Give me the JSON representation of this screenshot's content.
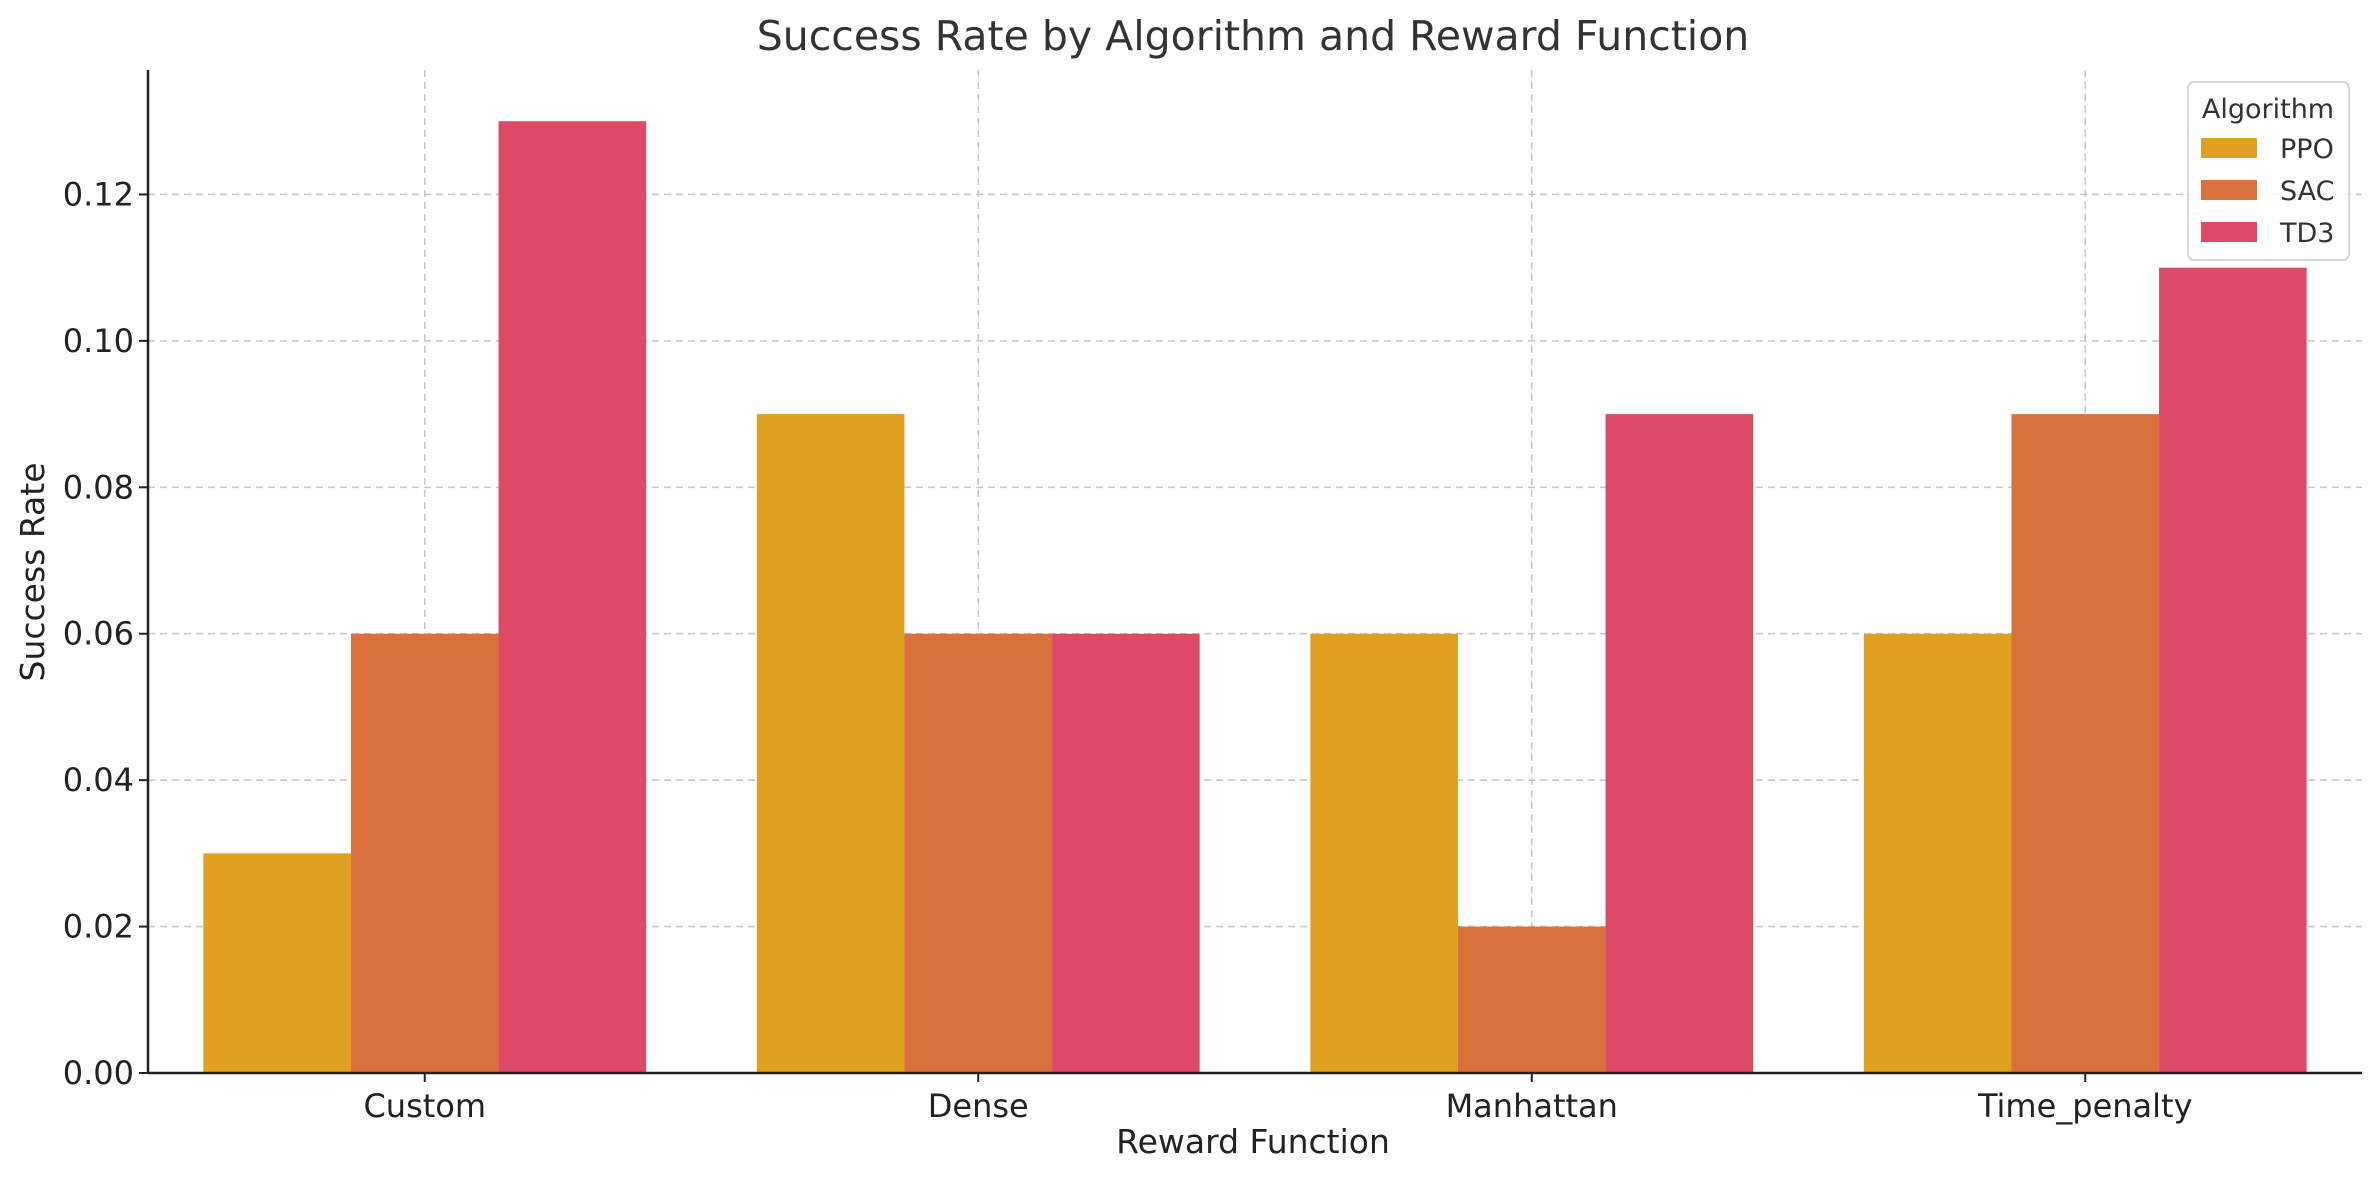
{
  "chart_data": {
    "type": "bar",
    "title": "Success Rate by Algorithm and Reward Function",
    "xlabel": "Reward Function",
    "ylabel": "Success Rate",
    "categories": [
      "Custom",
      "Dense",
      "Manhattan",
      "Time_penalty"
    ],
    "series": [
      {
        "name": "PPO",
        "color": "#dfa11f",
        "values": [
          0.03,
          0.09,
          0.06,
          0.06
        ]
      },
      {
        "name": "SAC",
        "color": "#da703c",
        "values": [
          0.06,
          0.06,
          0.02,
          0.09
        ]
      },
      {
        "name": "TD3",
        "color": "#dc4a66",
        "values": [
          0.13,
          0.06,
          0.09,
          0.11
        ]
      }
    ],
    "ylim": [
      0,
      0.137
    ],
    "yticks": [
      "0.00",
      "0.02",
      "0.04",
      "0.06",
      "0.08",
      "0.10",
      "0.12"
    ],
    "grid": true,
    "legend": {
      "title": "Algorithm",
      "placement": "top-right"
    }
  }
}
